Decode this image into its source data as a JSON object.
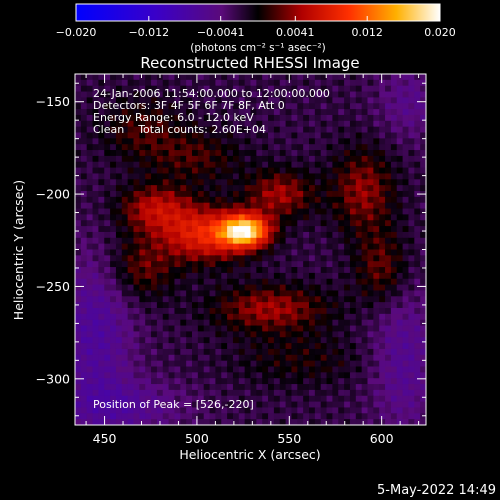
{
  "chart_data": {
    "type": "heatmap",
    "title": "Reconstructed RHESSI Image",
    "xlabel": "Heliocentric X (arcsec)",
    "ylabel": "Heliocentric Y (arcsec)",
    "xlim": [
      434,
      624
    ],
    "ylim": [
      -325,
      -135
    ],
    "x_ticks": [
      450,
      500,
      550,
      600
    ],
    "y_ticks": [
      -150,
      -200,
      -250,
      -300
    ],
    "colorbar": {
      "range": [
        -0.02,
        0.02
      ],
      "tick_labels": [
        "−0.020",
        "−0.012",
        "−0.0041",
        "0.0041",
        "0.012",
        "0.020"
      ],
      "tick_values": [
        -0.02,
        -0.012,
        -0.0041,
        0.0041,
        0.012,
        0.02
      ],
      "units_label": "(photons cm⁻² s⁻¹ asec⁻²)"
    },
    "annotations": [
      "24-Jan-2006 11:54:00.000 to 12:00:00.000",
      "Detectors: 3F 4F 5F 6F 7F 8F, Att 0",
      "Energy Range: 6.0 - 12.0 keV",
      "Clean    Total counts: 2.60E+04"
    ],
    "peak_label": "Position of Peak = [526,-220]",
    "peak": [
      526,
      -220
    ],
    "sources": [
      {
        "x": 526,
        "y": -220,
        "amp": 0.0195,
        "sx": 9,
        "sy": 6
      },
      {
        "x": 505,
        "y": -222,
        "amp": 0.01,
        "sx": 16,
        "sy": 10
      },
      {
        "x": 478,
        "y": -208,
        "amp": 0.007,
        "sx": 14,
        "sy": 9
      },
      {
        "x": 545,
        "y": -200,
        "amp": 0.006,
        "sx": 13,
        "sy": 9
      },
      {
        "x": 590,
        "y": -198,
        "amp": 0.0055,
        "sx": 12,
        "sy": 16
      },
      {
        "x": 600,
        "y": -240,
        "amp": 0.0045,
        "sx": 10,
        "sy": 14
      },
      {
        "x": 470,
        "y": -240,
        "amp": 0.0045,
        "sx": 13,
        "sy": 12
      },
      {
        "x": 540,
        "y": -262,
        "amp": 0.006,
        "sx": 22,
        "sy": 9
      },
      {
        "x": 470,
        "y": -165,
        "amp": 0.0035,
        "sx": 16,
        "sy": 12
      },
      {
        "x": 500,
        "y": -180,
        "amp": 0.0035,
        "sx": 18,
        "sy": 10
      },
      {
        "x": 555,
        "y": -290,
        "amp": 0.0025,
        "sx": 25,
        "sy": 10
      },
      {
        "x": 445,
        "y": -275,
        "amp": -0.005,
        "sx": 14,
        "sy": 30
      },
      {
        "x": 612,
        "y": -290,
        "amp": -0.004,
        "sx": 12,
        "sy": 28
      },
      {
        "x": 460,
        "y": -315,
        "amp": -0.004,
        "sx": 24,
        "sy": 10
      },
      {
        "x": 615,
        "y": -150,
        "amp": -0.003,
        "sx": 12,
        "sy": 14
      }
    ]
  },
  "footer": {
    "timestamp": "5-May-2022 14:49"
  }
}
